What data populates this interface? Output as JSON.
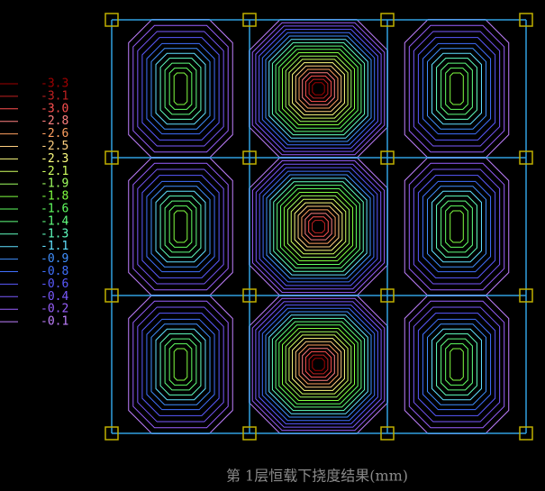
{
  "legend": {
    "levels": [
      -3.3,
      -3.1,
      {
        "value": -3,
        "label": "-3.0"
      },
      -2.8,
      -2.6,
      -2.5,
      -2.3,
      -2.1,
      -1.9,
      -1.8,
      -1.6,
      -1.4,
      -1.3,
      -1.1,
      -0.9,
      -0.8,
      -0.6,
      -0.4,
      -0.2,
      -0.1
    ],
    "colors": [
      "#a00000",
      "#c02020",
      "#ff5050",
      "#ff8080",
      "#ffa060",
      "#ffd080",
      "#ffff80",
      "#d0ff60",
      "#a0ff60",
      "#80ff40",
      "#60ff60",
      "#60ff80",
      "#60ffc0",
      "#60e0ff",
      "#4090ff",
      "#4070ff",
      "#5a5aff",
      "#7a5aff",
      "#9a60ff",
      "#c080ff"
    ]
  },
  "caption": "第  1层恒载下挠度结果(mm)"
}
